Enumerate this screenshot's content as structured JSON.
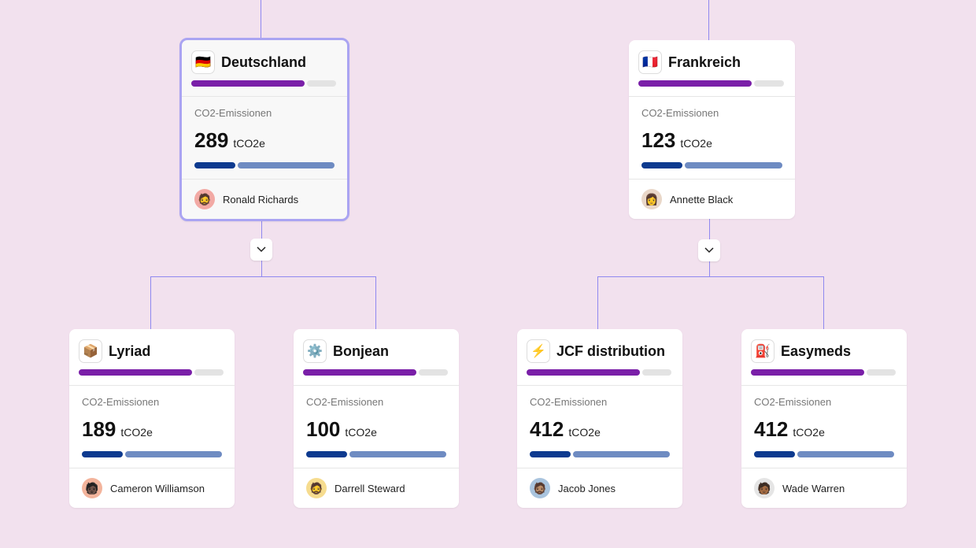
{
  "colors": {
    "progress": "#7a1fa8",
    "progress_track": "#e3e3e3",
    "emission_dark": "#0d3a8f",
    "emission_light": "#6e8bc2",
    "connector": "#8f88f0"
  },
  "label": "CO2-Emissionen",
  "unit": "tCO2e",
  "cards": [
    {
      "title": "Deutschland",
      "icon": "🇩🇪",
      "icon_name": "germany-flag-icon",
      "progress": 0.78,
      "value": "289",
      "share": 0.29,
      "person": "Ronald Richards",
      "avatar": "🧔",
      "avatar_bg": "#f2a9a4",
      "selected": true
    },
    {
      "title": "Frankreich",
      "icon": "🇫🇷",
      "icon_name": "france-flag-icon",
      "progress": 0.78,
      "value": "123",
      "share": 0.29,
      "person": "Annette Black",
      "avatar": "👩",
      "avatar_bg": "#e9d7c8",
      "selected": false
    },
    {
      "title": "Lyriad",
      "icon": "📦",
      "icon_name": "package-icon",
      "progress": 0.78,
      "value": "189",
      "share": 0.29,
      "person": "Cameron Williamson",
      "avatar": "🧑🏿",
      "avatar_bg": "#f3b49c",
      "selected": false
    },
    {
      "title": "Bonjean",
      "icon": "⚙️",
      "icon_name": "gear-icon",
      "progress": 0.78,
      "value": "100",
      "share": 0.29,
      "person": "Darrell Steward",
      "avatar": "🧔",
      "avatar_bg": "#f6dc8f",
      "selected": false
    },
    {
      "title": "JCF distribution",
      "icon": "⚡",
      "icon_name": "lightning-icon",
      "progress": 0.78,
      "value": "412",
      "share": 0.29,
      "person": "Jacob Jones",
      "avatar": "🧔🏽",
      "avatar_bg": "#a9c4de",
      "selected": false
    },
    {
      "title": "Easymeds",
      "icon": "⛽",
      "icon_name": "fuel-pump-icon",
      "progress": 0.78,
      "value": "412",
      "share": 0.29,
      "person": "Wade Warren",
      "avatar": "🧑🏾",
      "avatar_bg": "#e5e5e5",
      "selected": false
    }
  ]
}
